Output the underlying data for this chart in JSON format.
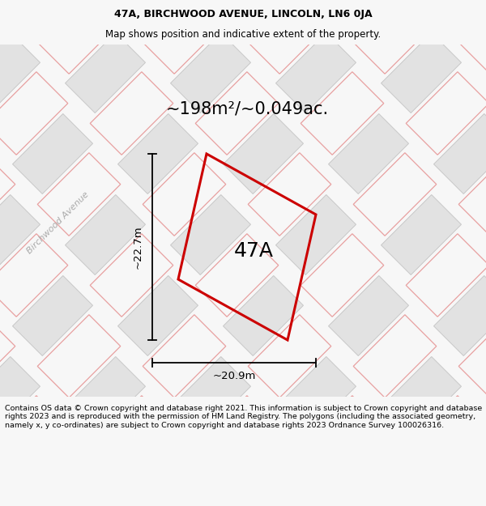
{
  "title_line1": "47A, BIRCHWOOD AVENUE, LINCOLN, LN6 0JA",
  "title_line2": "Map shows position and indicative extent of the property.",
  "area_text": "~198m²/~0.049ac.",
  "label_47A": "47A",
  "dim_height": "~22.7m",
  "dim_width": "~20.9m",
  "street_label": "Birchwood Avenue",
  "footer_text": "Contains OS data © Crown copyright and database right 2021. This information is subject to Crown copyright and database rights 2023 and is reproduced with the permission of HM Land Registry. The polygons (including the associated geometry, namely x, y co-ordinates) are subject to Crown copyright and database rights 2023 Ordnance Survey 100026316.",
  "bg_color": "#f7f7f7",
  "map_bg": "#eeeeee",
  "tile_fill": "#e2e2e2",
  "tile_stroke": "#c8c8c8",
  "pink_stroke": "#e8a0a0",
  "red_polygon": "#cc0000",
  "title_fontsize": 9,
  "subtitle_fontsize": 8.5,
  "footer_fontsize": 6.8,
  "area_fontsize": 15,
  "label_fontsize": 18,
  "dim_fontsize": 9.5,
  "street_fontsize": 8
}
